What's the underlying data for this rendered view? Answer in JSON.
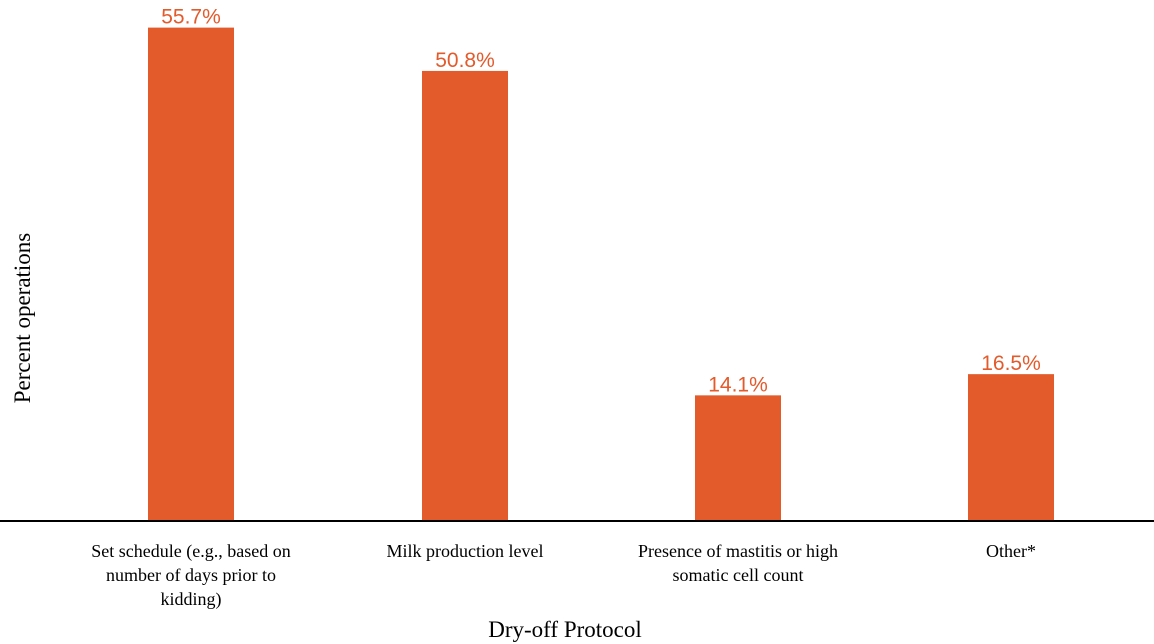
{
  "chart_data": {
    "type": "bar",
    "categories": [
      [
        "Set schedule (e.g., based on",
        "number of days prior to",
        "kidding)"
      ],
      [
        "Milk production level"
      ],
      [
        "Presence of mastitis or high",
        "somatic cell count"
      ],
      [
        "Other*"
      ]
    ],
    "values": [
      55.7,
      50.8,
      14.1,
      16.5
    ],
    "value_labels": [
      "55.7%",
      "50.8%",
      "14.1%",
      "16.5%"
    ],
    "xlabel": "Dry-off Protocol",
    "ylabel": "Percent operations",
    "ylim": [
      0,
      56
    ],
    "grid": false,
    "bar_color": "#E35A2B",
    "label_color": "#E35A2B",
    "axis_color": "#000000"
  }
}
